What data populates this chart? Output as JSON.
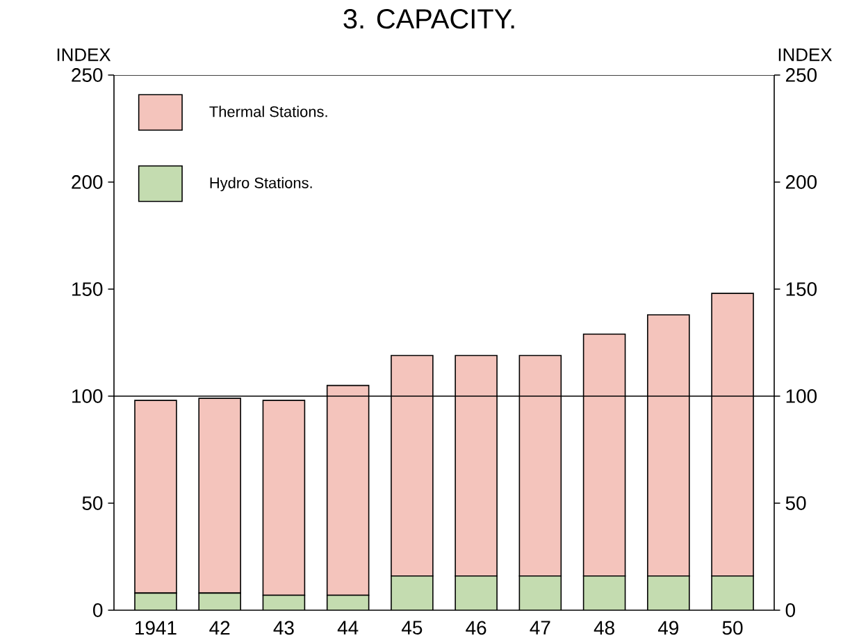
{
  "chart_data": {
    "type": "bar",
    "title": "3. CAPACITY.",
    "ylabel": "INDEX",
    "y2label": "INDEX",
    "categories": [
      "1941",
      "42",
      "43",
      "44",
      "45",
      "46",
      "47",
      "48",
      "49",
      "50"
    ],
    "stacked": true,
    "series": [
      {
        "name": "Hydro Stations.",
        "color": "#c4dcb0",
        "values": [
          8,
          8,
          7,
          7,
          16,
          16,
          16,
          16,
          16,
          16
        ]
      },
      {
        "name": "Thermal Stations.",
        "color": "#f4c4bc",
        "values": [
          90,
          91,
          91,
          98,
          103,
          103,
          103,
          113,
          122,
          132
        ]
      }
    ],
    "ylim": [
      0,
      250
    ],
    "yticks": [
      0,
      50,
      100,
      150,
      200,
      250
    ],
    "y2lim": [
      0,
      250
    ],
    "y2ticks": [
      0,
      50,
      100,
      150,
      200,
      250
    ],
    "ref_lines": [
      {
        "axis": "y",
        "value": 100
      }
    ],
    "legend": "top left",
    "grid": false
  }
}
